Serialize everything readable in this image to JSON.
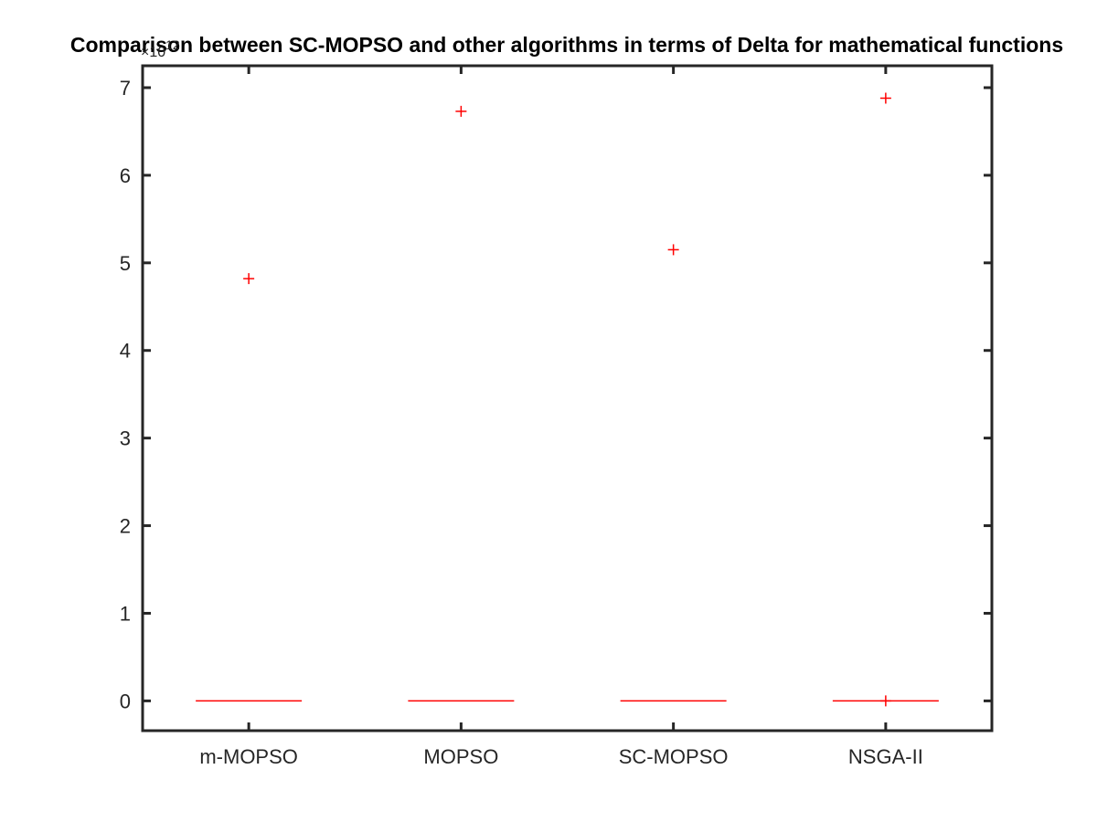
{
  "chart_data": {
    "type": "box",
    "title": "Comparison between SC-MOPSO and other algorithms in terms of Delta for mathematical functions",
    "xlabel": "",
    "ylabel": "",
    "categories": [
      "m-MOPSO",
      "MOPSO",
      "SC-MOPSO",
      "NSGA-II"
    ],
    "y_exponent_label": "×10",
    "y_exponent_power": "12",
    "y_scale": 1000000000000,
    "ylim": [
      -0.34,
      7.25
    ],
    "yticks": [
      0,
      1,
      2,
      3,
      4,
      5,
      6,
      7
    ],
    "ytick_labels": [
      "0",
      "1",
      "2",
      "3",
      "4",
      "5",
      "6",
      "7"
    ],
    "median": [
      0,
      0,
      0,
      0
    ],
    "outliers": [
      [
        4.82
      ],
      [
        6.73
      ],
      [
        5.15
      ],
      [
        6.88,
        0
      ]
    ],
    "grid": false,
    "colors": {
      "median": "#ff0000",
      "outlier": "#ff0000",
      "axes": "#262626"
    }
  }
}
